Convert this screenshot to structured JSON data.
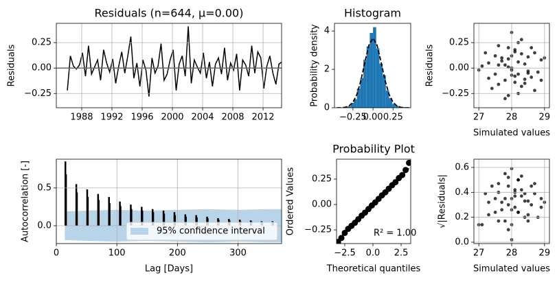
{
  "chart_data": [
    {
      "type": "line",
      "title": "Residuals (n=644, μ=0.00)",
      "ylabel": "Residuals",
      "color": "#000000",
      "grid": true,
      "mean": 0,
      "x": [
        1986.1,
        1986.5,
        1986.9,
        1987.3,
        1987.7,
        1988.1,
        1988.5,
        1988.9,
        1989.3,
        1989.7,
        1990.1,
        1990.5,
        1990.9,
        1991.3,
        1991.7,
        1992.1,
        1992.5,
        1992.9,
        1993.3,
        1993.7,
        1994.1,
        1994.5,
        1994.9,
        1995.3,
        1995.7,
        1996.1,
        1996.5,
        1996.9,
        1997.3,
        1997.7,
        1998.1,
        1998.5,
        1998.9,
        1999.3,
        1999.7,
        2000.1,
        2000.5,
        2000.9,
        2001.3,
        2001.7,
        2002.1,
        2002.5,
        2002.9,
        2003.3,
        2003.7,
        2004.1,
        2004.5,
        2004.9,
        2005.3,
        2005.7,
        2006.1,
        2006.5,
        2006.9,
        2007.3,
        2007.7,
        2008.1,
        2008.5,
        2008.9,
        2009.3,
        2009.7,
        2010.1,
        2010.5,
        2010.9,
        2011.3,
        2011.7,
        2012.1,
        2012.5,
        2012.9,
        2013.3,
        2013.7,
        2014.1,
        2014.5
      ],
      "values": [
        -0.22,
        0.12,
        0.02,
        -0.01,
        0.03,
        0.15,
        -0.08,
        0.22,
        -0.06,
        0.01,
        0.08,
        -0.12,
        0.18,
        0.05,
        -0.04,
        0.09,
        -0.15,
        0.02,
        0.16,
        -0.05,
        0.12,
        0.31,
        -0.1,
        0.05,
        -0.18,
        0.08,
        -0.02,
        -0.28,
        0.1,
        -0.05,
        0.02,
        0.24,
        -0.12,
        -0.06,
        0.08,
        0.18,
        -0.22,
        0.04,
        0.12,
        -0.08,
        0.41,
        -0.15,
        0.08,
        0.01,
        -0.05,
        0.15,
        -0.1,
        0.06,
        -0.18,
        0.04,
        0.1,
        -0.06,
        0.2,
        -0.12,
        0.05,
        -0.02,
        0.14,
        -0.22,
        0.08,
        0.03,
        -0.08,
        0.22,
        -0.05,
        0.16,
        0.1,
        -0.2,
        0.02,
        0.12,
        -0.05,
        -0.16,
        0.04,
        0.06
      ],
      "xlim": [
        1984.64,
        2014.45
      ],
      "xticks": [
        1988,
        1992,
        1996,
        2000,
        2004,
        2008,
        2012
      ],
      "ylim": [
        -0.39,
        0.44
      ],
      "yticks": [
        {
          "value": -0.25,
          "label": "−0.25"
        },
        {
          "value": 0,
          "label": "0.00"
        },
        0.25
      ]
    },
    {
      "type": "histogram",
      "title": "Histogram",
      "ylabel": "Probability density",
      "color": "#1f77b4",
      "grid": false,
      "bins": [
        -0.4,
        -0.36,
        -0.32,
        -0.28,
        -0.24,
        -0.2,
        -0.16,
        -0.12,
        -0.08,
        -0.04,
        0.0,
        0.04,
        0.08,
        0.12,
        0.16,
        0.2,
        0.24,
        0.28,
        0.32,
        0.36,
        0.4
      ],
      "values": [
        0.01,
        0.04,
        0.08,
        0.25,
        0.45,
        1.0,
        1.55,
        2.5,
        3.2,
        3.9,
        4.2,
        3.1,
        2.3,
        1.7,
        0.9,
        0.5,
        0.2,
        0.1,
        0.04,
        0.03
      ],
      "curve": {
        "color": "#000000",
        "x": [
          -0.45,
          -0.4,
          -0.35,
          -0.3,
          -0.25,
          -0.2,
          -0.15,
          -0.1,
          -0.05,
          0.0,
          0.05,
          0.1,
          0.15,
          0.2,
          0.25,
          0.3,
          0.35,
          0.4,
          0.45
        ],
        "values": [
          0,
          0.005,
          0.02,
          0.09,
          0.28,
          0.7,
          1.43,
          2.4,
          3.27,
          3.63,
          3.27,
          2.4,
          1.43,
          0.7,
          0.28,
          0.09,
          0.02,
          0.005,
          0
        ]
      },
      "xlim": [
        -0.48,
        0.47
      ],
      "xticks": [
        {
          "value": -0.25,
          "label": "−0.25"
        },
        {
          "value": 0,
          "label": "0.00"
        },
        0.25
      ],
      "ylim": [
        0,
        4.4
      ],
      "yticks": [
        0,
        2,
        4
      ]
    },
    {
      "type": "scatter",
      "xlabel": "Simulated values",
      "ylabel": "Residuals",
      "color": "#000000",
      "grid": true,
      "x": [
        27.3,
        27.8,
        28.1,
        28.5,
        27.6,
        28.9,
        28.2,
        27.9,
        28.0,
        28.4,
        27.5,
        28.7,
        27.1,
        28.3,
        28.6,
        27.7,
        28.0,
        28.2,
        27.4,
        28.8,
        27.9,
        28.1,
        28.5,
        27.6,
        28.3,
        27.2,
        28.0,
        28.9,
        27.8,
        28.4,
        27.5,
        28.2,
        28.6,
        27.9,
        28.1,
        27.3,
        28.7,
        28.0,
        27.7,
        28.3,
        28.5,
        27.6,
        28.2,
        27.9,
        29.0,
        27.0,
        28.1,
        28.4,
        27.8,
        28.0
      ],
      "values": [
        0.05,
        -0.12,
        0.18,
        -0.03,
        0.22,
        0.08,
        -0.25,
        0.01,
        0.12,
        -0.15,
        -0.06,
        0.15,
        0.02,
        0.28,
        -0.09,
        0.1,
        -0.02,
        0.06,
        -0.2,
        -0.04,
        0.2,
        -0.08,
        0.11,
        0.03,
        -0.18,
        0.15,
        0.35,
        -0.12,
        -0.3,
        0.04,
        0.12,
        -0.06,
        0.2,
        0.09,
        -0.14,
        -0.1,
        -0.22,
        0.0,
        0.07,
        0.14,
        -0.05,
        -0.16,
        0.25,
        -0.27,
        0.1,
        -0.02,
        0.16,
        -0.11,
        0.03,
        -0.07
      ],
      "xlim": [
        26.85,
        29.15
      ],
      "xticks": [
        27,
        28,
        29
      ],
      "ylim": [
        -0.39,
        0.44
      ],
      "yticks": [
        {
          "value": -0.25,
          "label": "−0.25"
        },
        {
          "value": 0,
          "label": "0.00"
        },
        0.25
      ]
    },
    {
      "type": "stem",
      "xlabel": "Lag [Days]",
      "ylabel": "Autocorrelation [-]",
      "color": "#000000",
      "grid": true,
      "x": [
        15,
        16,
        33,
        34,
        51,
        52,
        69,
        70,
        87,
        88,
        105,
        106,
        123,
        124,
        141,
        142,
        159,
        160,
        177,
        178,
        195,
        196,
        213,
        214,
        231,
        232,
        249,
        250,
        267,
        268,
        285,
        286,
        303,
        304,
        321,
        322,
        339,
        340,
        357,
        358
      ],
      "values": [
        0.85,
        0.68,
        0.55,
        0.44,
        0.48,
        0.38,
        0.42,
        0.34,
        0.38,
        0.3,
        0.32,
        0.26,
        0.28,
        0.22,
        0.25,
        0.2,
        0.22,
        0.18,
        0.2,
        0.16,
        0.18,
        0.14,
        0.15,
        0.12,
        0.14,
        0.11,
        0.12,
        0.1,
        0.1,
        0.08,
        0.09,
        0.07,
        0.08,
        0.06,
        0.07,
        0.06,
        0.06,
        0.05,
        0.06,
        0.05
      ],
      "band": {
        "name": "95% confidence interval",
        "color": "#b8d4e8",
        "x": [
          14,
          50,
          100,
          150,
          200,
          250,
          300,
          350,
          372
        ],
        "upper": [
          0.19,
          0.2,
          0.21,
          0.2,
          0.21,
          0.22,
          0.21,
          0.22,
          0.22
        ],
        "lower": [
          -0.19,
          -0.2,
          -0.21,
          -0.2,
          -0.21,
          -0.22,
          -0.21,
          -0.22,
          -0.22
        ]
      },
      "legend": "lower right",
      "xlim": [
        0,
        372
      ],
      "xticks": [
        0,
        100,
        200,
        300
      ],
      "ylim": [
        -0.236,
        0.88
      ],
      "yticks": [
        {
          "value": 0,
          "label": "0.0"
        },
        0.5
      ]
    },
    {
      "type": "probplot",
      "title": "Probability Plot",
      "xlabel": "Theoretical quantiles",
      "ylabel": "Ordered Values",
      "annotation": "R² = 1.00",
      "color": "#000000",
      "grid": false,
      "x": [
        -3.1,
        -2.8,
        -2.5,
        -2.2,
        -1.9,
        -1.6,
        -1.3,
        -1.0,
        -0.7,
        -0.4,
        -0.1,
        0.2,
        0.5,
        0.8,
        1.1,
        1.4,
        1.7,
        2.0,
        2.3,
        2.6,
        2.9,
        3.2
      ],
      "values": [
        -0.37,
        -0.33,
        -0.28,
        -0.24,
        -0.21,
        -0.18,
        -0.145,
        -0.11,
        -0.08,
        -0.045,
        -0.01,
        0.02,
        0.055,
        0.09,
        0.12,
        0.155,
        0.19,
        0.22,
        0.26,
        0.29,
        0.34,
        0.41
      ],
      "fit": {
        "x": [
          -3.1,
          3.2
        ],
        "values": [
          -0.345,
          0.355
        ]
      },
      "xlim": [
        -3.23,
        3.35
      ],
      "xticks": [
        {
          "value": -2.5,
          "label": "−2.5"
        },
        {
          "value": 0,
          "label": "0.0"
        },
        2.5
      ],
      "ylim": [
        -0.385,
        0.446
      ],
      "yticks": [
        {
          "value": -0.25,
          "label": "−0.25"
        },
        {
          "value": 0,
          "label": "0.00"
        },
        0.25
      ]
    },
    {
      "type": "scatter",
      "xlabel": "Simulated values",
      "ylabel": "√|Residuals|",
      "color": "#000000",
      "grid": true,
      "x": [
        27.3,
        27.8,
        28.1,
        28.5,
        27.6,
        28.9,
        28.2,
        27.9,
        28.0,
        28.4,
        27.5,
        28.7,
        27.1,
        28.3,
        28.6,
        27.7,
        28.0,
        28.2,
        27.4,
        28.8,
        27.9,
        28.1,
        28.5,
        27.6,
        28.3,
        27.2,
        28.0,
        28.9,
        27.8,
        28.4,
        27.5,
        28.2,
        28.6,
        27.9,
        28.1,
        27.3,
        28.7,
        28.0,
        27.7,
        28.3,
        28.5,
        27.6,
        28.2,
        27.9,
        29.0,
        27.0,
        28.1,
        28.4,
        27.8,
        28.0
      ],
      "values": [
        0.22,
        0.35,
        0.42,
        0.17,
        0.47,
        0.28,
        0.5,
        0.1,
        0.35,
        0.39,
        0.24,
        0.39,
        0.14,
        0.53,
        0.3,
        0.32,
        0.14,
        0.24,
        0.45,
        0.2,
        0.45,
        0.28,
        0.33,
        0.17,
        0.42,
        0.39,
        0.59,
        0.35,
        0.55,
        0.2,
        0.35,
        0.24,
        0.45,
        0.3,
        0.37,
        0.32,
        0.47,
        0.02,
        0.26,
        0.37,
        0.22,
        0.4,
        0.5,
        0.52,
        0.32,
        0.14,
        0.4,
        0.33,
        0.17,
        0.26
      ],
      "xlim": [
        26.85,
        29.15
      ],
      "xticks": [
        27,
        28,
        29
      ],
      "ylim": [
        -0.011,
        0.666
      ],
      "yticks": [
        {
          "value": 0,
          "label": "0.0"
        },
        0.2,
        0.4,
        0.6
      ]
    }
  ]
}
